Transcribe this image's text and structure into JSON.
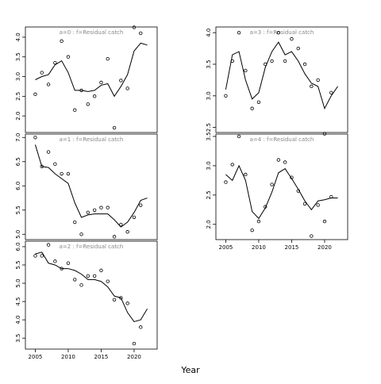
{
  "xlabel": "Year",
  "chart_data": [
    {
      "type": "scatter",
      "title": "a=0 : f=Residual catch",
      "x": [
        2005,
        2006,
        2007,
        2008,
        2009,
        2010,
        2011,
        2012,
        2013,
        2014,
        2015,
        2016,
        2017,
        2018,
        2019,
        2020,
        2021,
        2022
      ],
      "series": [
        {
          "style": "points",
          "color": "#000000",
          "values": [
            2.55,
            3.1,
            2.8,
            3.35,
            3.9,
            3.5,
            2.15,
            2.65,
            2.3,
            2.5,
            2.85,
            3.45,
            1.7,
            2.9,
            2.7,
            4.25,
            4.1,
            null
          ]
        },
        {
          "style": "line",
          "color": "#000000",
          "values": [
            2.92,
            3.0,
            3.05,
            3.3,
            3.4,
            3.1,
            2.65,
            2.65,
            2.62,
            2.65,
            2.78,
            2.82,
            2.5,
            2.75,
            3.05,
            3.65,
            3.85,
            3.8
          ]
        }
      ],
      "xlim": [
        2003.5,
        2023.5
      ],
      "ylim": [
        1.58,
        4.26
      ],
      "yticks": [
        {
          "value": 2,
          "label": "2.0"
        },
        2.5,
        {
          "value": 3,
          "label": "3.0"
        },
        3.5,
        {
          "value": 4,
          "label": "4.0"
        }
      ]
    },
    {
      "type": "scatter",
      "title": "a=1 : f=Residual catch",
      "x": [
        2005,
        2006,
        2007,
        2008,
        2009,
        2010,
        2011,
        2012,
        2013,
        2014,
        2015,
        2016,
        2017,
        2018,
        2019,
        2020,
        2021,
        2022
      ],
      "series": [
        {
          "style": "points",
          "color": "#000000",
          "values": [
            7.0,
            6.4,
            6.7,
            6.45,
            6.25,
            6.25,
            5.25,
            5.0,
            5.45,
            5.5,
            5.55,
            5.55,
            4.95,
            5.2,
            5.05,
            5.35,
            5.6,
            null
          ]
        },
        {
          "style": "line",
          "color": "#000000",
          "values": [
            6.85,
            6.4,
            6.38,
            6.25,
            6.15,
            6.05,
            5.65,
            5.35,
            5.4,
            5.42,
            5.42,
            5.42,
            5.3,
            5.15,
            5.25,
            5.45,
            5.7,
            5.75
          ]
        }
      ],
      "xlim": [
        2003.5,
        2023.5
      ],
      "ylim": [
        4.89,
        7.07
      ],
      "yticks": [
        {
          "value": 5,
          "label": "5.0"
        },
        5.5,
        {
          "value": 6,
          "label": "6.0"
        },
        6.5,
        {
          "value": 7,
          "label": "7.0"
        }
      ]
    },
    {
      "type": "scatter",
      "title": "a=2 : f=Residual catch",
      "x": [
        2005,
        2006,
        2007,
        2008,
        2009,
        2010,
        2011,
        2012,
        2013,
        2014,
        2015,
        2016,
        2017,
        2018,
        2019,
        2020,
        2021,
        2022
      ],
      "series": [
        {
          "style": "points",
          "color": "#000000",
          "values": [
            5.75,
            5.75,
            6.05,
            5.6,
            5.4,
            5.55,
            5.1,
            4.95,
            5.2,
            5.2,
            5.35,
            5.05,
            4.55,
            4.6,
            4.45,
            3.35,
            3.8,
            null
          ]
        },
        {
          "style": "line",
          "color": "#000000",
          "values": [
            5.8,
            5.85,
            5.55,
            5.5,
            5.4,
            5.4,
            5.35,
            5.25,
            5.1,
            5.1,
            5.05,
            4.9,
            4.65,
            4.6,
            4.2,
            3.95,
            4.0,
            4.3
          ]
        }
      ],
      "xlim": [
        2003.5,
        2023.5
      ],
      "ylim": [
        3.2,
        6.15
      ],
      "xticks": [
        2005,
        2010,
        2015,
        2020
      ],
      "yticks": [
        3.5,
        {
          "value": 4,
          "label": "4.0"
        },
        4.5,
        {
          "value": 5,
          "label": "5.0"
        },
        5.5,
        {
          "value": 6,
          "label": "6.0"
        }
      ]
    },
    {
      "type": "scatter",
      "title": "a=3 : f=Residual catch",
      "x": [
        2005,
        2006,
        2007,
        2008,
        2009,
        2010,
        2011,
        2012,
        2013,
        2014,
        2015,
        2016,
        2017,
        2018,
        2019,
        2020,
        2021,
        2022
      ],
      "series": [
        {
          "style": "points",
          "color": "#000000",
          "values": [
            3.0,
            3.55,
            4.0,
            3.4,
            2.8,
            2.9,
            3.5,
            3.55,
            4.0,
            3.55,
            3.9,
            3.75,
            3.5,
            3.15,
            3.25,
            2.4,
            3.05,
            null
          ]
        },
        {
          "style": "line",
          "color": "#000000",
          "values": [
            3.1,
            3.65,
            3.7,
            3.25,
            2.95,
            3.05,
            3.45,
            3.7,
            3.85,
            3.65,
            3.7,
            3.55,
            3.35,
            3.2,
            3.15,
            2.8,
            3.0,
            3.15
          ]
        }
      ],
      "xlim": [
        2003.5,
        2023.5
      ],
      "ylim": [
        2.42,
        4.09
      ],
      "yticks": [
        2.5,
        {
          "value": 3,
          "label": "3.0"
        },
        3.5,
        {
          "value": 4,
          "label": "4.0"
        }
      ]
    },
    {
      "type": "scatter",
      "title": "a=4 : f=Residual catch",
      "x": [
        2005,
        2006,
        2007,
        2008,
        2009,
        2010,
        2011,
        2012,
        2013,
        2014,
        2015,
        2016,
        2017,
        2018,
        2019,
        2020,
        2021,
        2022
      ],
      "series": [
        {
          "style": "points",
          "color": "#000000",
          "values": [
            2.72,
            3.02,
            3.5,
            2.85,
            1.9,
            2.05,
            2.3,
            2.68,
            3.1,
            3.06,
            2.8,
            2.57,
            2.35,
            1.8,
            2.33,
            2.05,
            2.47,
            null
          ]
        },
        {
          "style": "line",
          "color": "#000000",
          "values": [
            2.85,
            2.75,
            3.0,
            2.75,
            2.22,
            2.1,
            2.28,
            2.55,
            2.88,
            2.95,
            2.78,
            2.6,
            2.4,
            2.25,
            2.4,
            2.42,
            2.45,
            2.45
          ]
        }
      ],
      "xlim": [
        2003.5,
        2023.5
      ],
      "ylim": [
        1.74,
        3.54
      ],
      "xticks": [
        2005,
        2010,
        2015,
        2020
      ],
      "yticks": [
        {
          "value": 2,
          "label": "2.0"
        },
        2.5,
        {
          "value": 3,
          "label": "3.0"
        },
        3.5
      ]
    }
  ]
}
